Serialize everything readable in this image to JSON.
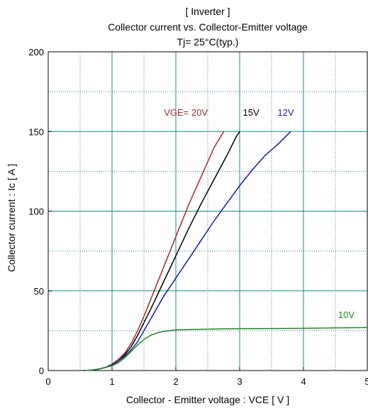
{
  "chart_data": {
    "type": "line",
    "title": [
      "[ Inverter ]",
      "Collector current  vs.  Collector-Emitter voltage",
      "Tj= 25°C(typ.)"
    ],
    "xlabel": "Collector - Emitter voltage  :  VCE  [ V ]",
    "ylabel": "Collector current  :  Ic  [ A ]",
    "xlim": [
      0,
      5
    ],
    "ylim": [
      0,
      200
    ],
    "xticks": [
      0,
      1,
      2,
      3,
      4,
      5
    ],
    "yticks": [
      0,
      50,
      100,
      150,
      200
    ],
    "minor_grid_x": [
      0.5,
      1.5,
      2.5,
      3.5,
      4.5
    ],
    "minor_grid_y": [
      25,
      75,
      125,
      175
    ],
    "grid": true,
    "series": [
      {
        "name": "VGE= 20V",
        "color": "#a52a2a",
        "points": [
          [
            0.55,
            0
          ],
          [
            0.7,
            0.3
          ],
          [
            0.8,
            1
          ],
          [
            0.9,
            2
          ],
          [
            1.0,
            4
          ],
          [
            1.1,
            7
          ],
          [
            1.2,
            11
          ],
          [
            1.3,
            17
          ],
          [
            1.4,
            25
          ],
          [
            1.5,
            34
          ],
          [
            1.6,
            44
          ],
          [
            1.8,
            64
          ],
          [
            2.0,
            84
          ],
          [
            2.2,
            104
          ],
          [
            2.4,
            122
          ],
          [
            2.6,
            140
          ],
          [
            2.75,
            150
          ]
        ]
      },
      {
        "name": "15V",
        "color": "#000000",
        "points": [
          [
            0.55,
            0
          ],
          [
            0.7,
            0.3
          ],
          [
            0.8,
            1
          ],
          [
            0.9,
            2
          ],
          [
            1.0,
            3.5
          ],
          [
            1.1,
            6
          ],
          [
            1.2,
            10
          ],
          [
            1.3,
            15
          ],
          [
            1.4,
            22
          ],
          [
            1.5,
            30
          ],
          [
            1.6,
            38
          ],
          [
            1.8,
            55
          ],
          [
            2.0,
            72
          ],
          [
            2.2,
            89
          ],
          [
            2.4,
            105
          ],
          [
            2.6,
            120
          ],
          [
            2.8,
            135
          ],
          [
            2.95,
            147
          ],
          [
            3.0,
            150
          ]
        ]
      },
      {
        "name": "12V",
        "color": "#1a1aa6",
        "points": [
          [
            0.55,
            0
          ],
          [
            0.7,
            0.3
          ],
          [
            0.8,
            1
          ],
          [
            0.9,
            2
          ],
          [
            1.0,
            3.5
          ],
          [
            1.1,
            6
          ],
          [
            1.2,
            9
          ],
          [
            1.3,
            13
          ],
          [
            1.4,
            18
          ],
          [
            1.5,
            25
          ],
          [
            1.6,
            32
          ],
          [
            1.8,
            46
          ],
          [
            2.0,
            58
          ],
          [
            2.2,
            70
          ],
          [
            2.4,
            82
          ],
          [
            2.6,
            94
          ],
          [
            2.8,
            105
          ],
          [
            3.0,
            116
          ],
          [
            3.2,
            126
          ],
          [
            3.4,
            135
          ],
          [
            3.6,
            142
          ],
          [
            3.8,
            150
          ]
        ]
      },
      {
        "name": "10V",
        "color": "#208a20",
        "points": [
          [
            0.55,
            0
          ],
          [
            0.7,
            0.3
          ],
          [
            0.8,
            1
          ],
          [
            0.9,
            2
          ],
          [
            1.0,
            3
          ],
          [
            1.1,
            5
          ],
          [
            1.2,
            8
          ],
          [
            1.3,
            12
          ],
          [
            1.4,
            16
          ],
          [
            1.5,
            19.5
          ],
          [
            1.6,
            22
          ],
          [
            1.7,
            23.5
          ],
          [
            1.8,
            24.5
          ],
          [
            1.9,
            25
          ],
          [
            2.0,
            25.5
          ],
          [
            2.5,
            26
          ],
          [
            3.0,
            26.3
          ],
          [
            4.0,
            26.5
          ],
          [
            5.0,
            27
          ]
        ]
      }
    ]
  }
}
